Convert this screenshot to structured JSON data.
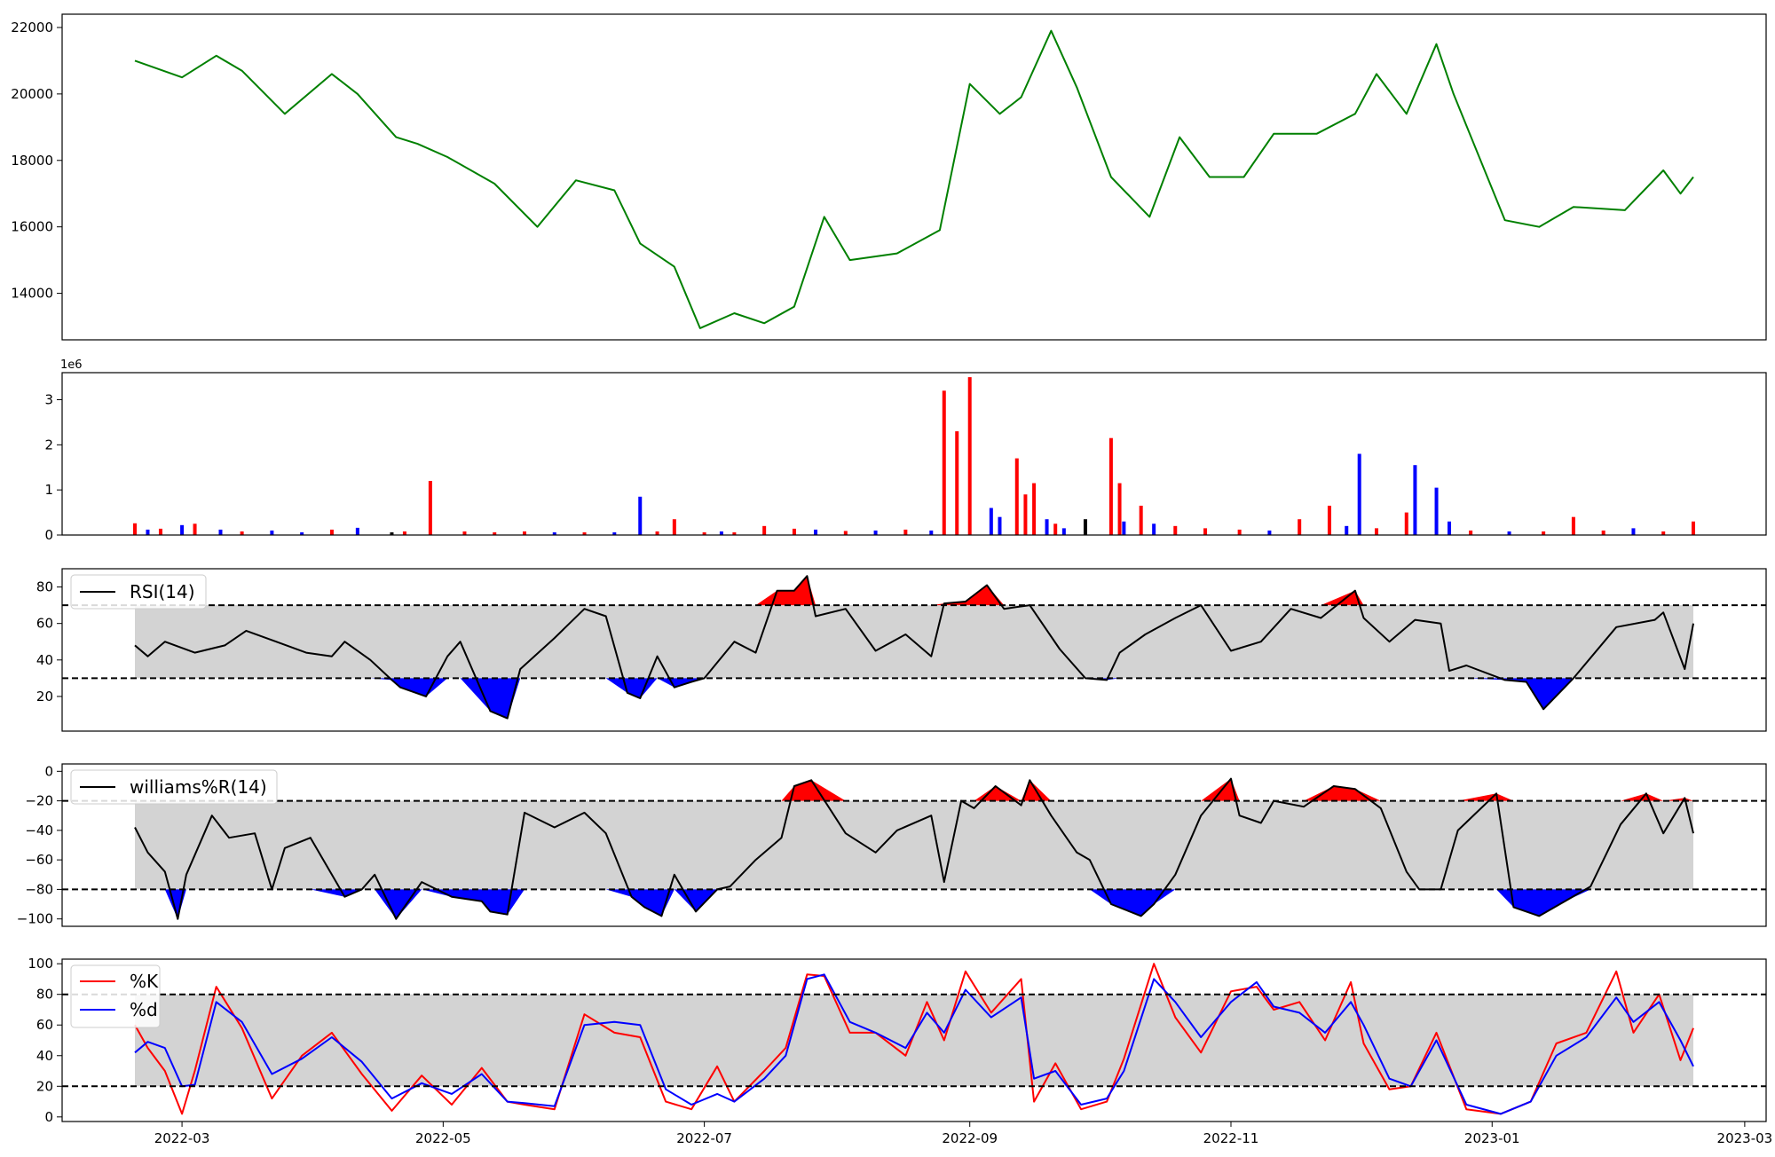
{
  "chart_data": [
    {
      "type": "line",
      "panel": "price",
      "ylim": [
        12600,
        22400
      ],
      "yticks": [
        14000,
        16000,
        18000,
        20000,
        22000
      ],
      "ytick_labels": [
        "14000",
        "16000",
        "18000",
        "20000",
        "22000"
      ],
      "x": [
        "2022-02-18",
        "2022-03-01",
        "2022-03-09",
        "2022-03-15",
        "2022-03-25",
        "2022-04-05",
        "2022-04-11",
        "2022-04-20",
        "2022-04-25",
        "2022-05-02",
        "2022-05-13",
        "2022-05-23",
        "2022-06-01",
        "2022-06-10",
        "2022-06-16",
        "2022-06-24",
        "2022-06-30",
        "2022-07-08",
        "2022-07-15",
        "2022-07-22",
        "2022-07-29",
        "2022-08-04",
        "2022-08-15",
        "2022-08-25",
        "2022-09-01",
        "2022-09-08",
        "2022-09-13",
        "2022-09-20",
        "2022-09-26",
        "2022-10-04",
        "2022-10-13",
        "2022-10-20",
        "2022-10-27",
        "2022-11-04",
        "2022-11-11",
        "2022-11-21",
        "2022-11-30",
        "2022-12-05",
        "2022-12-12",
        "2022-12-19",
        "2022-12-23",
        "2023-01-04",
        "2023-01-12",
        "2023-01-20",
        "2023-02-01",
        "2023-02-10",
        "2023-02-14",
        "2023-02-17"
      ],
      "series": [
        {
          "color": "#008000",
          "values": [
            21000,
            20500,
            21150,
            20700,
            19400,
            20600,
            20000,
            18700,
            18500,
            18100,
            17300,
            16000,
            17400,
            17100,
            15500,
            14800,
            12950,
            13400,
            13100,
            13600,
            16300,
            15000,
            15200,
            15900,
            20300,
            19400,
            19900,
            21900,
            20200,
            17500,
            16300,
            18700,
            17500,
            17500,
            18800,
            18800,
            19400,
            20600,
            19400,
            21500,
            20000,
            16200,
            16000,
            16600,
            16500,
            17700,
            17000,
            17500
          ]
        }
      ]
    },
    {
      "type": "bar",
      "panel": "volume",
      "ylim": [
        0,
        3.6
      ],
      "yticks": [
        0,
        1,
        2,
        3
      ],
      "ytick_labels": [
        "0",
        "1",
        "2",
        "3"
      ],
      "offset_label": "1e6",
      "x": [
        "2022-02-18",
        "2022-02-21",
        "2022-02-24",
        "2022-03-01",
        "2022-03-04",
        "2022-03-10",
        "2022-03-15",
        "2022-03-22",
        "2022-03-29",
        "2022-04-05",
        "2022-04-11",
        "2022-04-19",
        "2022-04-22",
        "2022-04-28",
        "2022-05-06",
        "2022-05-13",
        "2022-05-20",
        "2022-05-27",
        "2022-06-03",
        "2022-06-10",
        "2022-06-16",
        "2022-06-20",
        "2022-06-24",
        "2022-07-01",
        "2022-07-05",
        "2022-07-08",
        "2022-07-15",
        "2022-07-22",
        "2022-07-27",
        "2022-08-03",
        "2022-08-10",
        "2022-08-17",
        "2022-08-23",
        "2022-08-26",
        "2022-08-29",
        "2022-09-01",
        "2022-09-06",
        "2022-09-08",
        "2022-09-12",
        "2022-09-14",
        "2022-09-16",
        "2022-09-19",
        "2022-09-21",
        "2022-09-23",
        "2022-09-28",
        "2022-10-04",
        "2022-10-06",
        "2022-10-07",
        "2022-10-11",
        "2022-10-14",
        "2022-10-19",
        "2022-10-26",
        "2022-11-03",
        "2022-11-10",
        "2022-11-17",
        "2022-11-24",
        "2022-11-28",
        "2022-12-01",
        "2022-12-05",
        "2022-12-12",
        "2022-12-14",
        "2022-12-19",
        "2022-12-22",
        "2022-12-27",
        "2023-01-05",
        "2023-01-13",
        "2023-01-20",
        "2023-01-27",
        "2023-02-03",
        "2023-02-10",
        "2023-02-17"
      ],
      "values": [
        0.26,
        0.12,
        0.14,
        0.22,
        0.25,
        0.12,
        0.08,
        0.1,
        0.06,
        0.12,
        0.16,
        0.06,
        0.08,
        1.2,
        0.08,
        0.06,
        0.08,
        0.06,
        0.06,
        0.06,
        0.85,
        0.08,
        0.35,
        0.06,
        0.08,
        0.06,
        0.2,
        0.14,
        0.12,
        0.09,
        0.1,
        0.12,
        0.1,
        3.2,
        2.3,
        3.5,
        0.6,
        0.4,
        1.7,
        0.9,
        1.15,
        0.35,
        0.25,
        0.15,
        0.35,
        2.15,
        1.15,
        0.3,
        0.65,
        0.25,
        0.2,
        0.15,
        0.12,
        0.1,
        0.35,
        0.65,
        0.2,
        1.8,
        0.15,
        0.5,
        1.55,
        1.05,
        0.3,
        0.1,
        0.08,
        0.08,
        0.4,
        0.1,
        0.15,
        0.08,
        0.3
      ],
      "colors": [
        "#ff0000",
        "#0000ff",
        "#ff0000",
        "#0000ff",
        "#ff0000",
        "#0000ff",
        "#ff0000",
        "#0000ff",
        "#0000ff",
        "#ff0000",
        "#0000ff",
        "#000000",
        "#ff0000",
        "#ff0000",
        "#ff0000",
        "#ff0000",
        "#ff0000",
        "#0000ff",
        "#ff0000",
        "#0000ff",
        "#0000ff",
        "#ff0000",
        "#ff0000",
        "#ff0000",
        "#0000ff",
        "#ff0000",
        "#ff0000",
        "#ff0000",
        "#0000ff",
        "#ff0000",
        "#0000ff",
        "#ff0000",
        "#0000ff",
        "#ff0000",
        "#ff0000",
        "#ff0000",
        "#0000ff",
        "#0000ff",
        "#ff0000",
        "#ff0000",
        "#ff0000",
        "#0000ff",
        "#ff0000",
        "#0000ff",
        "#000000",
        "#ff0000",
        "#ff0000",
        "#0000ff",
        "#ff0000",
        "#0000ff",
        "#ff0000",
        "#ff0000",
        "#ff0000",
        "#0000ff",
        "#ff0000",
        "#ff0000",
        "#0000ff",
        "#0000ff",
        "#ff0000",
        "#ff0000",
        "#0000ff",
        "#0000ff",
        "#0000ff",
        "#ff0000",
        "#0000ff",
        "#ff0000",
        "#ff0000",
        "#ff0000",
        "#0000ff",
        "#ff0000",
        "#ff0000"
      ]
    },
    {
      "type": "line",
      "panel": "rsi",
      "ylim": [
        1,
        90
      ],
      "yticks": [
        20,
        40,
        60,
        80
      ],
      "ytick_labels": [
        "20",
        "40",
        "60",
        "80"
      ],
      "upper": 70,
      "lower": 30,
      "fill_colors": {
        "band": "#d3d3d3",
        "over": "#ff0000",
        "under": "#0000ff"
      },
      "x": [
        "2022-02-18",
        "2022-02-21",
        "2022-02-25",
        "2022-03-04",
        "2022-03-11",
        "2022-03-16",
        "2022-03-23",
        "2022-03-30",
        "2022-04-05",
        "2022-04-08",
        "2022-04-14",
        "2022-04-19",
        "2022-04-21",
        "2022-04-27",
        "2022-05-02",
        "2022-05-05",
        "2022-05-12",
        "2022-05-16",
        "2022-05-19",
        "2022-05-27",
        "2022-06-03",
        "2022-06-08",
        "2022-06-13",
        "2022-06-16",
        "2022-06-20",
        "2022-06-24",
        "2022-06-28",
        "2022-07-01",
        "2022-07-08",
        "2022-07-13",
        "2022-07-18",
        "2022-07-22",
        "2022-07-25",
        "2022-07-27",
        "2022-08-03",
        "2022-08-10",
        "2022-08-17",
        "2022-08-23",
        "2022-08-26",
        "2022-08-31",
        "2022-09-05",
        "2022-09-09",
        "2022-09-15",
        "2022-09-22",
        "2022-09-28",
        "2022-10-03",
        "2022-10-06",
        "2022-10-12",
        "2022-10-19",
        "2022-10-25",
        "2022-11-01",
        "2022-11-08",
        "2022-11-15",
        "2022-11-22",
        "2022-11-30",
        "2022-12-02",
        "2022-12-08",
        "2022-12-14",
        "2022-12-20",
        "2022-12-22",
        "2022-12-26",
        "2023-01-04",
        "2023-01-09",
        "2023-01-13",
        "2023-01-20",
        "2023-01-30",
        "2023-02-08",
        "2023-02-10",
        "2023-02-15",
        "2023-02-17"
      ],
      "series": [
        {
          "name": "RSI(14)",
          "color": "#000000",
          "values": [
            48,
            42,
            50,
            44,
            48,
            56,
            50,
            44,
            42,
            50,
            40,
            29,
            25,
            20,
            42,
            50,
            12,
            8,
            35,
            52,
            68,
            64,
            22,
            19,
            42,
            25,
            28,
            30,
            50,
            44,
            78,
            78,
            86,
            64,
            68,
            45,
            54,
            42,
            71,
            72,
            81,
            68,
            70,
            46,
            30,
            29,
            44,
            54,
            63,
            70,
            45,
            50,
            68,
            63,
            78,
            63,
            50,
            62,
            60,
            34,
            37,
            29,
            28,
            13,
            30,
            58,
            62,
            66,
            35,
            60
          ]
        }
      ]
    },
    {
      "type": "line",
      "panel": "williams",
      "ylim": [
        -105,
        5
      ],
      "yticks": [
        -100,
        -80,
        -60,
        -40,
        -20,
        0
      ],
      "ytick_labels": [
        "−100",
        "−80",
        "−60",
        "−40",
        "−20",
        "0"
      ],
      "upper": -20,
      "lower": -80,
      "fill_colors": {
        "band": "#d3d3d3",
        "over": "#ff0000",
        "under": "#0000ff"
      },
      "x": [
        "2022-02-18",
        "2022-02-21",
        "2022-02-25",
        "2022-02-28",
        "2022-03-02",
        "2022-03-08",
        "2022-03-12",
        "2022-03-18",
        "2022-03-22",
        "2022-03-25",
        "2022-03-31",
        "2022-04-08",
        "2022-04-12",
        "2022-04-15",
        "2022-04-20",
        "2022-04-26",
        "2022-05-03",
        "2022-05-10",
        "2022-05-12",
        "2022-05-16",
        "2022-05-20",
        "2022-05-27",
        "2022-06-03",
        "2022-06-08",
        "2022-06-14",
        "2022-06-17",
        "2022-06-21",
        "2022-06-24",
        "2022-06-29",
        "2022-07-04",
        "2022-07-07",
        "2022-07-13",
        "2022-07-19",
        "2022-07-22",
        "2022-07-26",
        "2022-08-03",
        "2022-08-10",
        "2022-08-15",
        "2022-08-23",
        "2022-08-26",
        "2022-08-30",
        "2022-09-02",
        "2022-09-07",
        "2022-09-13",
        "2022-09-15",
        "2022-09-20",
        "2022-09-26",
        "2022-09-29",
        "2022-10-04",
        "2022-10-11",
        "2022-10-14",
        "2022-10-19",
        "2022-10-25",
        "2022-11-01",
        "2022-11-03",
        "2022-11-08",
        "2022-11-11",
        "2022-11-18",
        "2022-11-25",
        "2022-11-30",
        "2022-12-06",
        "2022-12-12",
        "2022-12-15",
        "2022-12-20",
        "2022-12-24",
        "2023-01-02",
        "2023-01-06",
        "2023-01-12",
        "2023-01-18",
        "2023-01-24",
        "2023-01-31",
        "2023-02-06",
        "2023-02-10",
        "2023-02-15",
        "2023-02-17"
      ],
      "series": [
        {
          "name": "williams%R(14)",
          "color": "#000000",
          "values": [
            -38,
            -55,
            -68,
            -100,
            -70,
            -30,
            -45,
            -42,
            -80,
            -52,
            -45,
            -85,
            -80,
            -70,
            -100,
            -75,
            -85,
            -88,
            -95,
            -97,
            -28,
            -38,
            -28,
            -42,
            -85,
            -92,
            -98,
            -70,
            -95,
            -80,
            -78,
            -60,
            -45,
            -10,
            -6,
            -42,
            -55,
            -40,
            -30,
            -75,
            -20,
            -25,
            -10,
            -23,
            -6,
            -30,
            -55,
            -60,
            -90,
            -98,
            -90,
            -70,
            -30,
            -5,
            -30,
            -35,
            -20,
            -24,
            -10,
            -12,
            -25,
            -68,
            -80,
            -80,
            -40,
            -15,
            -92,
            -98,
            -88,
            -78,
            -36,
            -15,
            -42,
            -18,
            -42
          ]
        }
      ]
    },
    {
      "type": "line",
      "panel": "stochastic",
      "ylim": [
        -3,
        103
      ],
      "yticks": [
        0,
        20,
        40,
        60,
        80,
        100
      ],
      "ytick_labels": [
        "0",
        "20",
        "40",
        "60",
        "80",
        "100"
      ],
      "upper": 80,
      "lower": 20,
      "band_color": "#d3d3d3",
      "x_tick_labels": [
        "2022-03",
        "2022-05",
        "2022-07",
        "2022-09",
        "2022-11",
        "2023-01",
        "2023-03"
      ],
      "x": [
        "2022-02-18",
        "2022-02-21",
        "2022-02-25",
        "2022-03-01",
        "2022-03-04",
        "2022-03-09",
        "2022-03-15",
        "2022-03-22",
        "2022-03-29",
        "2022-04-05",
        "2022-04-12",
        "2022-04-19",
        "2022-04-26",
        "2022-05-03",
        "2022-05-10",
        "2022-05-16",
        "2022-05-20",
        "2022-05-27",
        "2022-06-03",
        "2022-06-10",
        "2022-06-16",
        "2022-06-22",
        "2022-06-28",
        "2022-07-04",
        "2022-07-08",
        "2022-07-15",
        "2022-07-20",
        "2022-07-25",
        "2022-07-29",
        "2022-08-04",
        "2022-08-10",
        "2022-08-17",
        "2022-08-22",
        "2022-08-26",
        "2022-08-31",
        "2022-09-06",
        "2022-09-13",
        "2022-09-16",
        "2022-09-21",
        "2022-09-27",
        "2022-10-03",
        "2022-10-07",
        "2022-10-14",
        "2022-10-19",
        "2022-10-25",
        "2022-11-01",
        "2022-11-07",
        "2022-11-11",
        "2022-11-17",
        "2022-11-23",
        "2022-11-29",
        "2022-12-02",
        "2022-12-08",
        "2022-12-13",
        "2022-12-19",
        "2022-12-26",
        "2023-01-03",
        "2023-01-10",
        "2023-01-16",
        "2023-01-23",
        "2023-01-30",
        "2023-02-03",
        "2023-02-09",
        "2023-02-14",
        "2023-02-17"
      ],
      "series": [
        {
          "name": "%K",
          "color": "#ff0000",
          "values": [
            60,
            45,
            30,
            2,
            30,
            85,
            58,
            12,
            40,
            55,
            28,
            4,
            27,
            8,
            32,
            10,
            8,
            5,
            67,
            55,
            52,
            10,
            5,
            33,
            10,
            30,
            45,
            93,
            92,
            55,
            55,
            40,
            75,
            50,
            95,
            68,
            90,
            10,
            35,
            5,
            10,
            38,
            100,
            65,
            42,
            82,
            85,
            70,
            75,
            50,
            88,
            48,
            18,
            20,
            55,
            5,
            2,
            10,
            48,
            55,
            95,
            55,
            80,
            37,
            58
          ],
          "dash": ""
        },
        {
          "name": "%d",
          "color": "#0000ff",
          "values": [
            42,
            49,
            45,
            20,
            21,
            75,
            62,
            28,
            38,
            52,
            36,
            12,
            22,
            15,
            28,
            10,
            9,
            7,
            60,
            62,
            60,
            18,
            8,
            15,
            10,
            25,
            40,
            90,
            93,
            62,
            55,
            45,
            68,
            55,
            83,
            65,
            78,
            25,
            30,
            8,
            12,
            30,
            90,
            75,
            52,
            75,
            88,
            72,
            68,
            55,
            75,
            60,
            25,
            20,
            50,
            8,
            2,
            10,
            40,
            52,
            78,
            62,
            75,
            50,
            33
          ],
          "dash": ""
        }
      ]
    }
  ]
}
